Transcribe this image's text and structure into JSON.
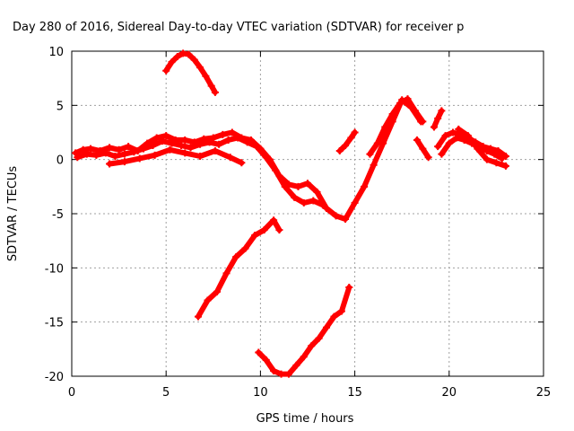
{
  "chart_data": {
    "type": "scatter",
    "title": "Day 280 of 2016, Sidereal Day-to-day VTEC variation (SDTVAR) for receiver p",
    "xlabel": "GPS time / hours",
    "ylabel": "SDTVAR / TECUs",
    "xlim": [
      0,
      25
    ],
    "ylim": [
      -20,
      10
    ],
    "xticks": [
      0,
      5,
      10,
      15,
      20,
      25
    ],
    "yticks": [
      10,
      5,
      0,
      -5,
      -10,
      -15,
      -20
    ],
    "grid": true,
    "marker": "plus",
    "color": "#ff0000",
    "series": [
      {
        "x": [
          0.2,
          0.6,
          1.0,
          1.5,
          2.0,
          2.5,
          3.0,
          3.5,
          4.0,
          4.5,
          5.0,
          5.5,
          6.0,
          6.5,
          7.0,
          7.5,
          8.0,
          8.5,
          9.0,
          9.5,
          10.0,
          10.5,
          11.0,
          11.5,
          12.0,
          12.5,
          13.0,
          13.5,
          14.0,
          14.5,
          15.0,
          15.5,
          16.0,
          16.5,
          17.0,
          17.5,
          18.0,
          18.5
        ],
        "y": [
          0.6,
          0.9,
          1.0,
          0.8,
          1.1,
          0.9,
          1.2,
          0.8,
          1.5,
          2.0,
          2.2,
          1.8,
          1.8,
          1.6,
          1.9,
          2.0,
          2.3,
          2.5,
          2.0,
          1.8,
          1.0,
          0.0,
          -1.5,
          -2.3,
          -2.5,
          -2.2,
          -3.0,
          -4.5,
          -5.2,
          -5.5,
          -4.0,
          -2.5,
          -0.5,
          1.5,
          3.5,
          5.5,
          4.8,
          3.5
        ]
      },
      {
        "x": [
          0.3,
          0.8,
          1.3,
          1.8,
          2.3,
          2.8,
          3.3,
          3.8,
          4.3,
          4.8,
          5.3,
          5.8,
          6.3,
          6.8,
          7.3,
          7.8,
          8.3,
          8.8,
          9.3,
          9.8,
          10.3,
          10.8,
          11.3,
          11.8,
          12.3,
          12.8,
          13.3
        ],
        "y": [
          0.2,
          0.5,
          0.4,
          0.6,
          0.3,
          0.5,
          0.7,
          1.0,
          1.3,
          1.7,
          1.5,
          1.3,
          1.1,
          1.4,
          1.6,
          1.4,
          1.8,
          2.0,
          1.6,
          1.2,
          0.2,
          -1.0,
          -2.5,
          -3.5,
          -4.0,
          -3.8,
          -4.2
        ]
      },
      {
        "x": [
          2.0,
          2.8,
          3.6,
          4.4,
          5.2,
          6.0,
          6.8,
          7.6,
          8.4,
          9.0
        ],
        "y": [
          -0.4,
          -0.2,
          0.1,
          0.4,
          0.9,
          0.6,
          0.3,
          0.8,
          0.2,
          -0.3
        ]
      },
      {
        "x": [
          5.0,
          5.3,
          5.6,
          5.9,
          6.2,
          6.5,
          6.8,
          7.1,
          7.4,
          7.6
        ],
        "y": [
          8.2,
          9.0,
          9.5,
          9.8,
          9.7,
          9.2,
          8.5,
          7.7,
          6.8,
          6.2
        ]
      },
      {
        "x": [
          6.7,
          7.2,
          7.7,
          8.2,
          8.7,
          9.2,
          9.7,
          10.2,
          10.7,
          11.0
        ],
        "y": [
          -14.5,
          -13.0,
          -12.2,
          -10.5,
          -9.0,
          -8.2,
          -7.0,
          -6.5,
          -5.6,
          -6.5
        ]
      },
      {
        "x": [
          9.9,
          10.3,
          10.7,
          11.1,
          11.5,
          11.9,
          12.3,
          12.7,
          13.1,
          13.5,
          13.9,
          14.3,
          14.7
        ],
        "y": [
          -17.8,
          -18.5,
          -19.5,
          -19.8,
          -19.8,
          -19.0,
          -18.2,
          -17.2,
          -16.5,
          -15.5,
          -14.5,
          -14.0,
          -11.8
        ]
      },
      {
        "x": [
          14.2,
          14.5,
          14.8,
          15.0
        ],
        "y": [
          0.8,
          1.3,
          2.0,
          2.5
        ]
      },
      {
        "x": [
          15.8,
          16.2,
          16.6,
          17.0,
          17.4,
          17.8,
          18.2,
          18.6
        ],
        "y": [
          0.5,
          1.5,
          3.0,
          4.2,
          5.2,
          5.6,
          4.5,
          3.5
        ]
      },
      {
        "x": [
          18.3,
          18.6,
          18.9
        ],
        "y": [
          1.8,
          1.0,
          0.2
        ]
      },
      {
        "x": [
          19.2,
          19.4,
          19.6
        ],
        "y": [
          3.0,
          3.8,
          4.5
        ]
      },
      {
        "x": [
          19.4,
          19.8,
          20.2,
          20.6,
          21.0,
          21.4,
          21.8,
          22.2,
          22.6,
          23.0
        ],
        "y": [
          1.2,
          2.2,
          2.5,
          2.3,
          2.0,
          1.6,
          1.2,
          1.0,
          0.8,
          0.3
        ]
      },
      {
        "x": [
          19.6,
          20.0,
          20.4,
          20.8,
          21.2,
          21.6,
          22.0,
          22.4,
          22.8
        ],
        "y": [
          0.5,
          1.5,
          2.0,
          1.8,
          1.5,
          1.2,
          0.8,
          0.5,
          0.1
        ]
      },
      {
        "x": [
          20.5,
          21.0,
          21.5,
          22.0,
          22.5,
          23.0
        ],
        "y": [
          2.8,
          2.2,
          1.0,
          0.0,
          -0.3,
          -0.6
        ]
      }
    ]
  }
}
